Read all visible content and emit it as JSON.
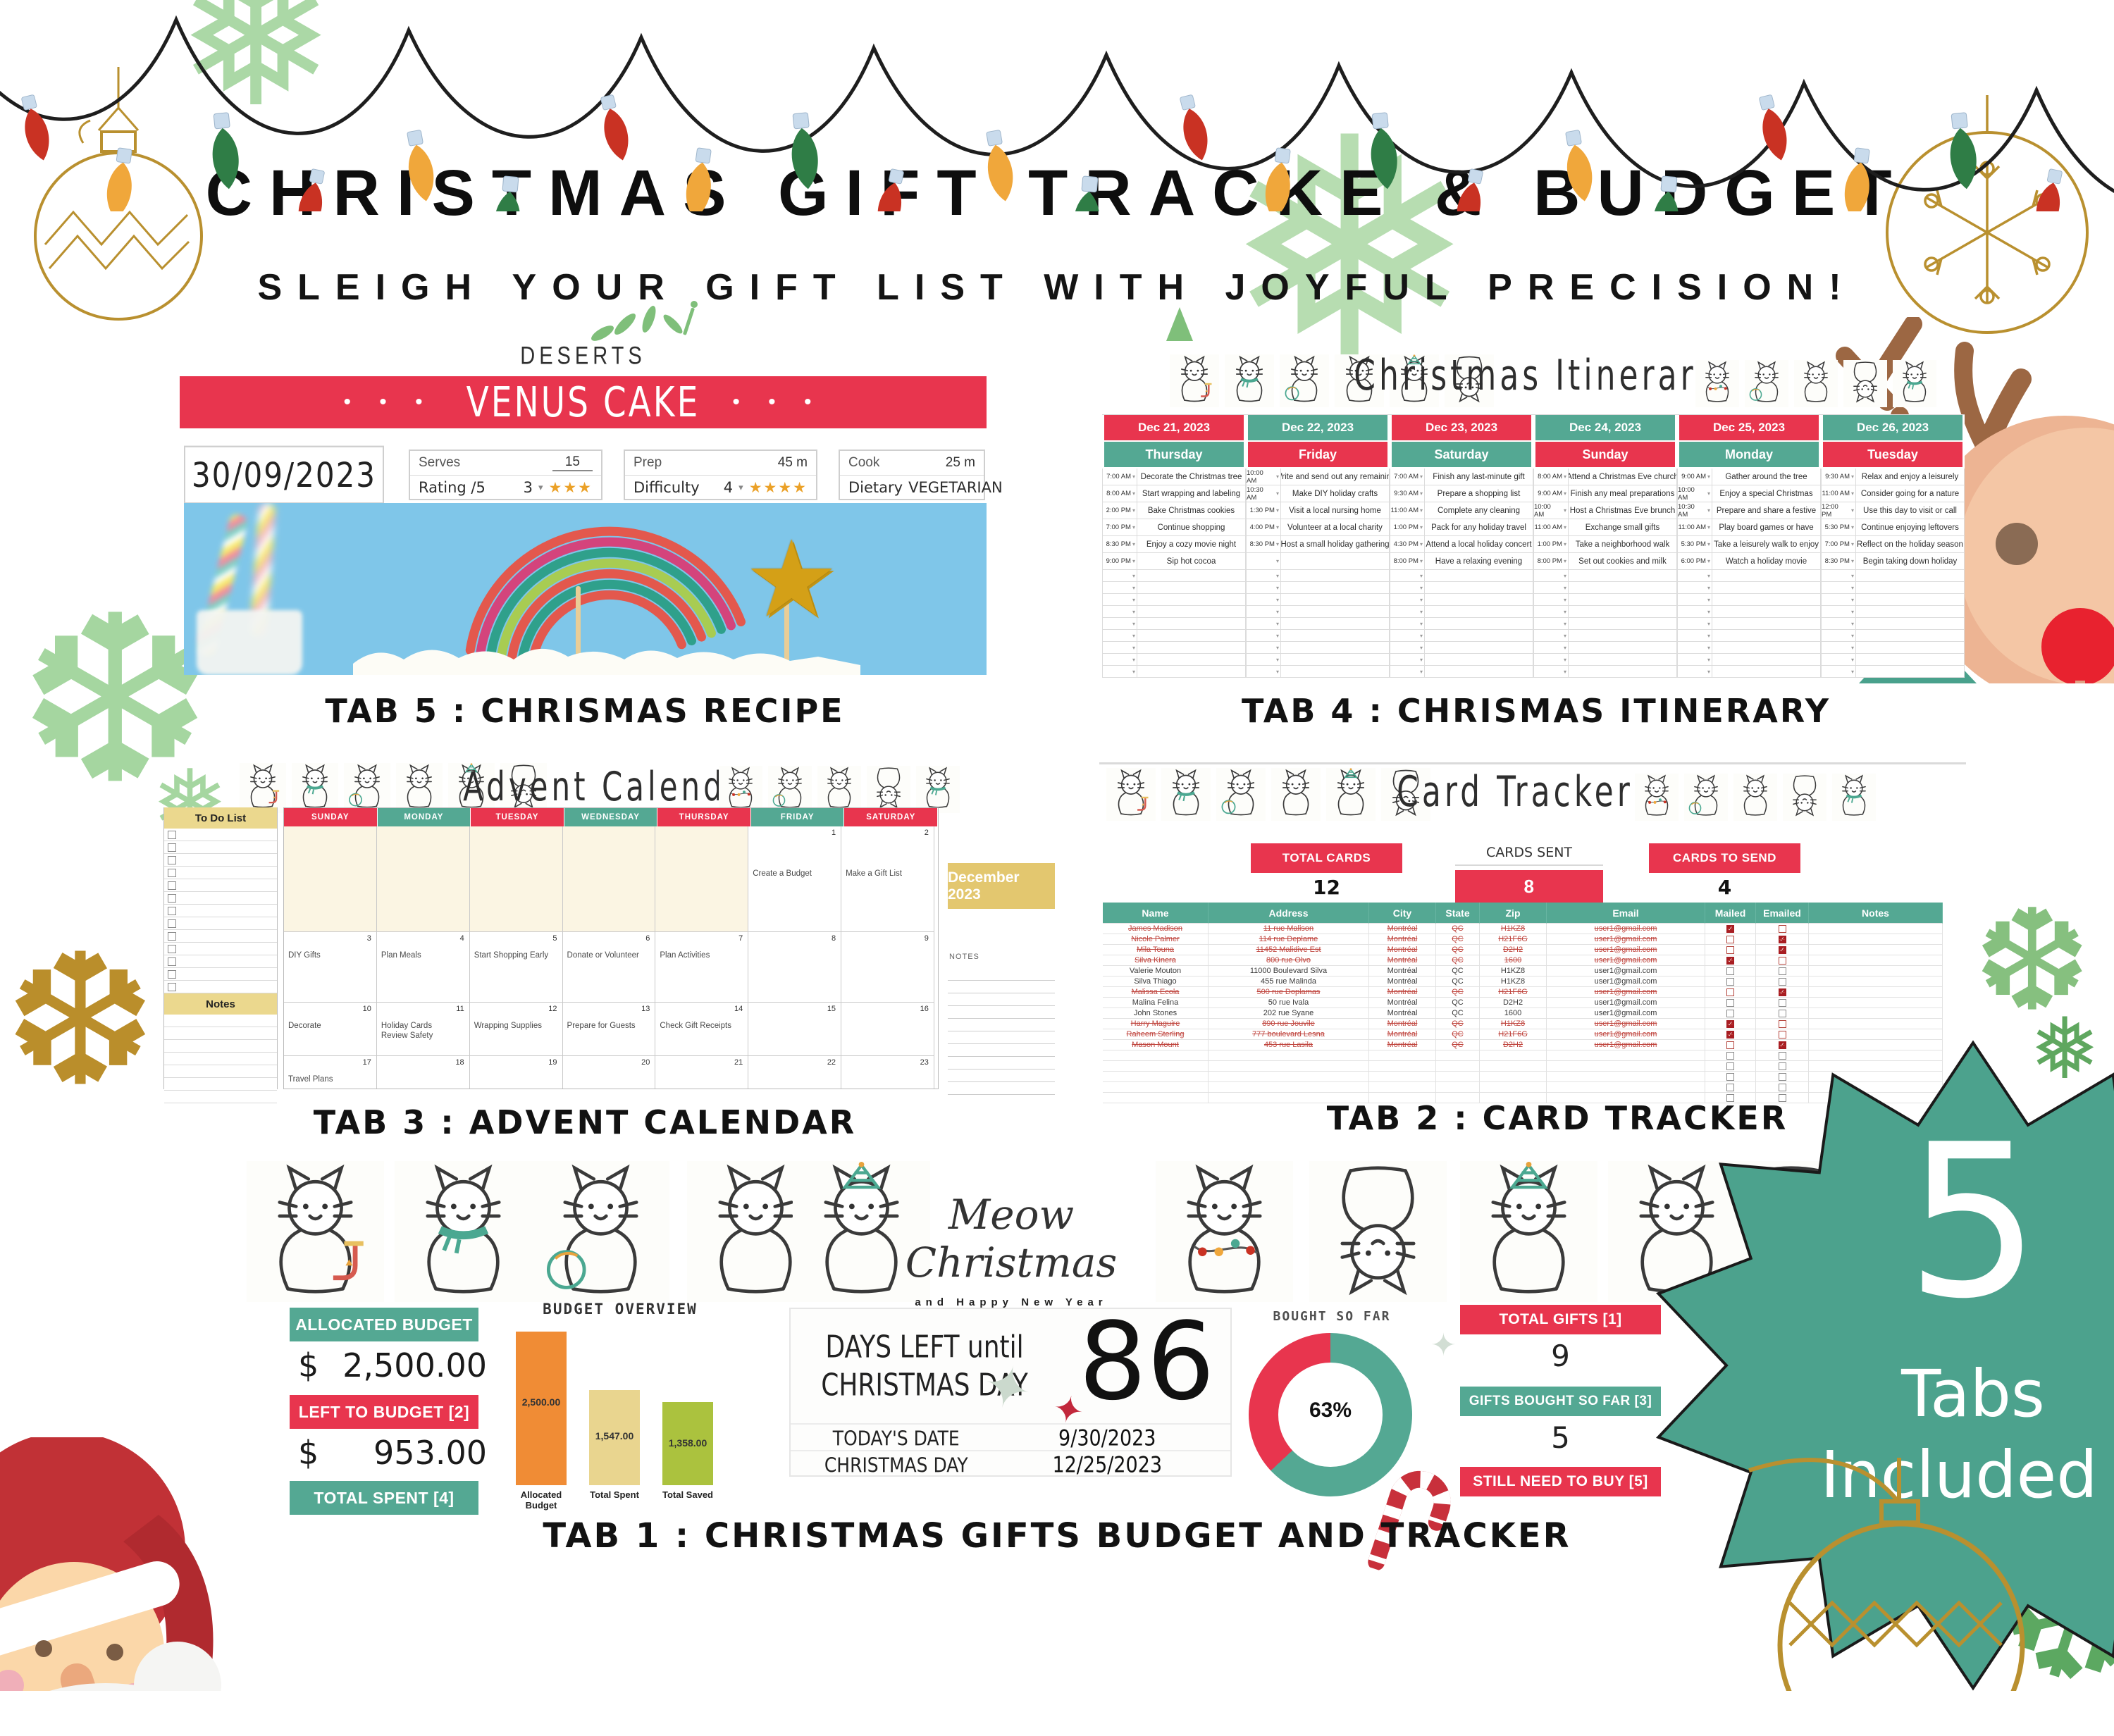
{
  "colors": {
    "red": "#E8354E",
    "teal": "#54A893",
    "gold": "#B9902F",
    "gold_light": "#EBD88E",
    "cream": "#FBF5E3",
    "sky": "#7FC6E9",
    "bulb_red": "#C93223",
    "bulb_yellow": "#F0A73B",
    "bulb_green": "#2F7D46",
    "bar_orange": "#F08C35",
    "bar_tan": "#E9D58F",
    "bar_green": "#ABC23E",
    "struck_red": "#C0463F",
    "check_red": "#A81D22"
  },
  "header": {
    "title": "CHRISTMAS GIFT TRACKE & BUDGET",
    "subtitle": "SLEIGH YOUR GIFT LIST WITH JOYFUL PRECISION!"
  },
  "badge": {
    "big": "5",
    "line1": "Tabs",
    "line2": "Included"
  },
  "tabs": {
    "tab1": "TAB 1 : CHRISTMAS GIFTS BUDGET AND TRACKER",
    "tab2": "TAB 2 : CARD TRACKER",
    "tab3": "TAB 3 : ADVENT CALENDAR",
    "tab4": "TAB 4 : CHRISMAS ITINERARY",
    "tab5": "TAB 5 : CHRISMAS RECIPE"
  },
  "recipe": {
    "category": "DESERTS",
    "dots": "• • •",
    "name": "VENUS CAKE",
    "date": "30/09/2023",
    "serves_label": "Serves",
    "serves": "15",
    "rating_label": "Rating /5",
    "rating": "3",
    "rating_stars": "★★★",
    "prep_label": "Prep",
    "prep": "45 m",
    "difficulty_label": "Difficulty",
    "difficulty": "4",
    "difficulty_stars": "★★★★",
    "cook_label": "Cook",
    "cook": "25 m",
    "dietary_label": "Dietary",
    "dietary": "VEGETARIAN"
  },
  "itinerary": {
    "title": "Christmas Itinerary",
    "empty_rows": 9,
    "days": [
      {
        "date": "Dec 21, 2023",
        "day": "Thursday",
        "rows": [
          [
            "7:00 AM",
            "Decorate the Christmas tree"
          ],
          [
            "8:00 AM",
            "Start wrapping and labeling"
          ],
          [
            "2:00 PM",
            "Bake Christmas cookies"
          ],
          [
            "7:00 PM",
            "Continue shopping"
          ],
          [
            "8:30 PM",
            "Enjoy a cozy movie night"
          ],
          [
            "9:00 PM",
            "Sip hot cocoa"
          ]
        ]
      },
      {
        "date": "Dec 22, 2023",
        "day": "Friday",
        "rows": [
          [
            "10:00 AM",
            "Write and send out any remaining"
          ],
          [
            "10:30 AM",
            "Make DIY holiday crafts"
          ],
          [
            "1:30 PM",
            "Visit a local nursing home"
          ],
          [
            "4:00 PM",
            "Volunteer at a local charity"
          ],
          [
            "8:30 PM",
            "Host a small holiday gathering"
          ],
          [
            "",
            ""
          ]
        ]
      },
      {
        "date": "Dec 23, 2023",
        "day": "Saturday",
        "rows": [
          [
            "7:00 AM",
            "Finish any last-minute gift"
          ],
          [
            "9:30 AM",
            "Prepare a shopping list"
          ],
          [
            "11:00 AM",
            "Complete any cleaning"
          ],
          [
            "1:00 PM",
            "Pack for any holiday travel"
          ],
          [
            "4:30 PM",
            "Attend a local holiday concert"
          ],
          [
            "8:00 PM",
            "Have a relaxing evening"
          ]
        ]
      },
      {
        "date": "Dec 24, 2023",
        "day": "Sunday",
        "rows": [
          [
            "8:00 AM",
            "Attend a Christmas Eve church"
          ],
          [
            "9:00 AM",
            "Finish any meal preparations"
          ],
          [
            "10:00 AM",
            "Host a Christmas Eve brunch"
          ],
          [
            "11:00 AM",
            "Exchange small gifts"
          ],
          [
            "1:00 PM",
            "Take a neighborhood walk"
          ],
          [
            "8:00 PM",
            "Set out cookies and milk"
          ]
        ]
      },
      {
        "date": "Dec 25, 2023",
        "day": "Monday",
        "rows": [
          [
            "9:00 AM",
            "Gather around the tree"
          ],
          [
            "10:00 AM",
            "Enjoy a special Christmas"
          ],
          [
            "10:30 AM",
            "Prepare and share a festive"
          ],
          [
            "11:00 AM",
            "Play board games or have"
          ],
          [
            "5:30 PM",
            "Take a leisurely walk to enjoy"
          ],
          [
            "6:00 PM",
            "Watch a holiday movie"
          ]
        ]
      },
      {
        "date": "Dec 26, 2023",
        "day": "Tuesday",
        "rows": [
          [
            "9:30 AM",
            "Relax and enjoy a leisurely"
          ],
          [
            "11:00 AM",
            "Consider going for a nature"
          ],
          [
            "12:00 PM",
            "Use this day to visit or call"
          ],
          [
            "5:30 PM",
            "Continue enjoying leftovers"
          ],
          [
            "7:00 PM",
            "Reflect on the holiday season"
          ],
          [
            "8:30 PM",
            "Begin taking down holiday"
          ]
        ]
      }
    ]
  },
  "advent": {
    "title": "Advent Calendar",
    "todo_label": "To Do List",
    "notes_label": "Notes",
    "side_month": "December 2023",
    "side_notes_label": "NOTES",
    "todo_rows": 13,
    "notes_rows": 7,
    "side_note_lines": 10,
    "weekdays": [
      "SUNDAY",
      "MONDAY",
      "TUESDAY",
      "WEDNESDAY",
      "THURSDAY",
      "FRIDAY",
      "SATURDAY"
    ],
    "weeks": [
      {
        "cells": [
          {
            "n": "",
            "t": ""
          },
          {
            "n": "",
            "t": ""
          },
          {
            "n": "",
            "t": ""
          },
          {
            "n": "",
            "t": ""
          },
          {
            "n": "",
            "t": ""
          },
          {
            "n": "1",
            "t": "Create a Budget"
          },
          {
            "n": "2",
            "t": "Make a Gift List"
          }
        ]
      },
      {
        "cells": [
          {
            "n": "3",
            "t": "DIY Gifts"
          },
          {
            "n": "4",
            "t": "Plan Meals"
          },
          {
            "n": "5",
            "t": "Start Shopping Early"
          },
          {
            "n": "6",
            "t": "Donate or Volunteer"
          },
          {
            "n": "7",
            "t": "Plan Activities"
          },
          {
            "n": "8",
            "t": ""
          },
          {
            "n": "9",
            "t": ""
          }
        ]
      },
      {
        "cells": [
          {
            "n": "10",
            "t": "Decorate"
          },
          {
            "n": "11",
            "t": "Holiday Cards\nReview Safety"
          },
          {
            "n": "12",
            "t": "Wrapping Supplies"
          },
          {
            "n": "13",
            "t": "Prepare for Guests"
          },
          {
            "n": "14",
            "t": "Check Gift Receipts"
          },
          {
            "n": "15",
            "t": ""
          },
          {
            "n": "16",
            "t": ""
          }
        ]
      },
      {
        "cells": [
          {
            "n": "17",
            "t": "Travel Plans"
          },
          {
            "n": "18",
            "t": ""
          },
          {
            "n": "19",
            "t": ""
          },
          {
            "n": "20",
            "t": ""
          },
          {
            "n": "21",
            "t": ""
          },
          {
            "n": "22",
            "t": ""
          },
          {
            "n": "23",
            "t": ""
          }
        ]
      }
    ]
  },
  "cards": {
    "title": "Card Tracker",
    "stats": [
      {
        "label": "TOTAL CARDS",
        "value": "12"
      },
      {
        "label": "CARDS SENT",
        "value": "8"
      },
      {
        "label": "CARDS TO SEND",
        "value": "4"
      }
    ],
    "columns": [
      "Name",
      "Address",
      "City",
      "State",
      "Zip",
      "Email",
      "Mailed",
      "Emailed",
      "Notes"
    ],
    "empty_rows": 5,
    "rows": [
      {
        "name": "James Madison",
        "address": "11 rue Malison",
        "city": "Montréal",
        "state": "QC",
        "zip": "H1KZ8",
        "email": "user1@gmail.com",
        "mailed": true,
        "emailed": false,
        "done": true
      },
      {
        "name": "Nicole Palmer",
        "address": "114 rue Deplame",
        "city": "Montréal",
        "state": "QC",
        "zip": "H21F6G",
        "email": "user1@gmail.com",
        "mailed": false,
        "emailed": true,
        "done": true
      },
      {
        "name": "Mila Touna",
        "address": "11452 Malidive Est",
        "city": "Montréal",
        "state": "QC",
        "zip": "D2H2",
        "email": "user1@gmail.com",
        "mailed": false,
        "emailed": true,
        "done": true
      },
      {
        "name": "Silva Kinera",
        "address": "800 rue Olvo",
        "city": "Montréal",
        "state": "QC",
        "zip": "1600",
        "email": "user1@gmail.com",
        "mailed": true,
        "emailed": false,
        "done": true
      },
      {
        "name": "Valerie Mouton",
        "address": "11000 Boulevard Silva",
        "city": "Montréal",
        "state": "QC",
        "zip": "H1KZ8",
        "email": "user1@gmail.com",
        "mailed": false,
        "emailed": false,
        "done": false
      },
      {
        "name": "Silva Thiago",
        "address": "455 rue Malinda",
        "city": "Montréal",
        "state": "QC",
        "zip": "H1KZ8",
        "email": "user1@gmail.com",
        "mailed": false,
        "emailed": false,
        "done": false
      },
      {
        "name": "Malissa Ecola",
        "address": "500 rue Doplamas",
        "city": "Montréal",
        "state": "QC",
        "zip": "H21F6G",
        "email": "user1@gmail.com",
        "mailed": false,
        "emailed": true,
        "done": true
      },
      {
        "name": "Malina Felina",
        "address": "50 rue Ivala",
        "city": "Montréal",
        "state": "QC",
        "zip": "D2H2",
        "email": "user1@gmail.com",
        "mailed": false,
        "emailed": false,
        "done": false
      },
      {
        "name": "John Stones",
        "address": "202 rue Syane",
        "city": "Montréal",
        "state": "QC",
        "zip": "1600",
        "email": "user1@gmail.com",
        "mailed": false,
        "emailed": false,
        "done": false
      },
      {
        "name": "Harry Maguire",
        "address": "890 rue Jouvile",
        "city": "Montréal",
        "state": "QC",
        "zip": "H1KZ8",
        "email": "user1@gmail.com",
        "mailed": true,
        "emailed": false,
        "done": true
      },
      {
        "name": "Raheem Sterling",
        "address": "777 boulevard Lesna",
        "city": "Montréal",
        "state": "QC",
        "zip": "H21F6G",
        "email": "user1@gmail.com",
        "mailed": true,
        "emailed": false,
        "done": true
      },
      {
        "name": "Mason Mount",
        "address": "453 rue Lasila",
        "city": "Montréal",
        "state": "QC",
        "zip": "D2H2",
        "email": "user1@gmail.com",
        "mailed": false,
        "emailed": true,
        "done": true
      }
    ]
  },
  "budget": {
    "brand": "Meow Christmas",
    "brand_sub": "and Happy New Year",
    "allocated_label": "ALLOCATED BUDGET",
    "allocated_currency": "$",
    "allocated_value": "2,500.00",
    "left_label": "LEFT TO BUDGET [2]",
    "left_currency": "$",
    "left_value": "953.00",
    "spent_label": "TOTAL SPENT [4]",
    "days_line1": "DAYS LEFT until",
    "days_line2": "CHRISTMAS DAY",
    "days_left": "86",
    "today_label": "TODAY'S DATE",
    "today_value": "9/30/2023",
    "xmas_label": "CHRISTMAS DAY",
    "xmas_value": "12/25/2023",
    "donut_title": "BOUGHT SO FAR",
    "donut_pct": "63%",
    "total_gifts_label": "TOTAL GIFTS [1]",
    "total_gifts": "9",
    "bought_label": "GIFTS BOUGHT SO FAR [3]",
    "bought": "5",
    "need_label": "STILL NEED TO BUY [5]"
  },
  "chart_data": [
    {
      "type": "bar",
      "title": "BUDGET OVERVIEW",
      "categories": [
        "Allocated Budget",
        "Total Spent",
        "Total Saved"
      ],
      "values": [
        2500,
        1547,
        1358
      ],
      "value_labels": [
        "2,500.00",
        "1,547.00",
        "1,358.00"
      ],
      "bar_colors": [
        "#F08C35",
        "#E9D58F",
        "#ABC23E"
      ],
      "ylim": [
        0,
        2500
      ],
      "grid": false,
      "legend": false
    },
    {
      "type": "donut",
      "title": "BOUGHT SO FAR",
      "center_label": "63%",
      "series": [
        {
          "name": "Bought so far",
          "value": 63,
          "color": "#54A893"
        },
        {
          "name": "Remaining",
          "value": 37,
          "color": "#E8354E"
        }
      ]
    }
  ]
}
